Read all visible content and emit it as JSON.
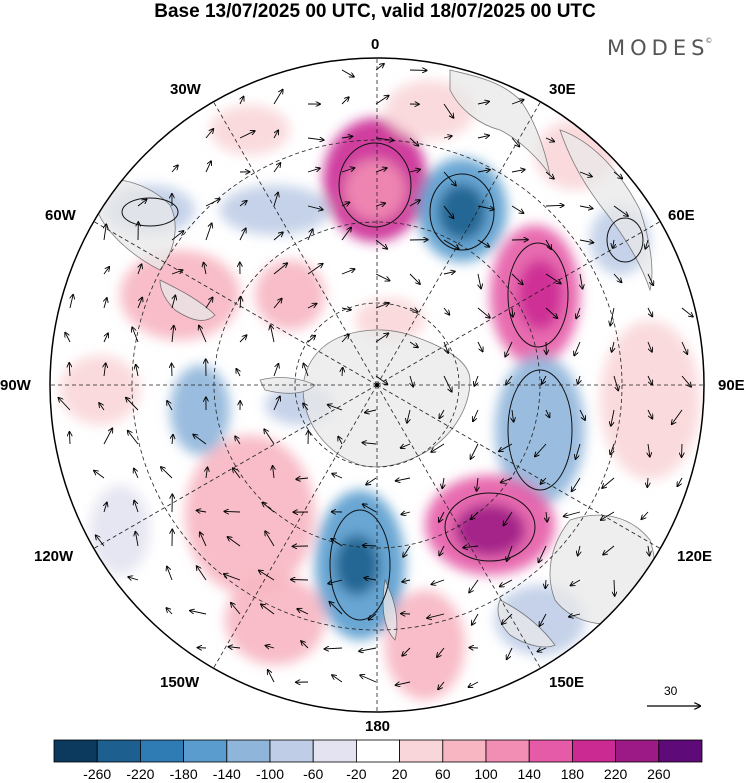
{
  "header": {
    "title": "Base 13/07/2025 00 UTC, valid 18/07/2025 00 UTC",
    "brand": "MODES",
    "brand_mark": "©"
  },
  "map": {
    "projection": "south-polar-stereographic",
    "longitude_labels": {
      "top": "0",
      "top_right": "30E",
      "right_upper": "60E",
      "right": "90E",
      "right_lower": "120E",
      "bottom_right": "150E",
      "bottom": "180",
      "bottom_left": "150W",
      "left_lower": "120W",
      "left": "90W",
      "left_upper": "60W",
      "top_left": "30W"
    },
    "colors": {
      "land": "#e8e8e8",
      "coast": "#555555",
      "grid": "#222222"
    },
    "reference_vector": {
      "label": "30"
    }
  },
  "colorbar": {
    "colors": [
      "#0c3a5e",
      "#1d5f8e",
      "#2f7cb4",
      "#5a9cce",
      "#8fb5da",
      "#bfcde7",
      "#e3e3f1",
      "#ffffff",
      "#f9d6d9",
      "#f7b6c2",
      "#f28eb4",
      "#e55ba7",
      "#cb2a93",
      "#9c1a86",
      "#5e0a78"
    ],
    "tick_labels": [
      "-260",
      "-220",
      "-180",
      "-140",
      "-100",
      "-60",
      "-20",
      "20",
      "60",
      "100",
      "140",
      "180",
      "220",
      "260"
    ]
  }
}
